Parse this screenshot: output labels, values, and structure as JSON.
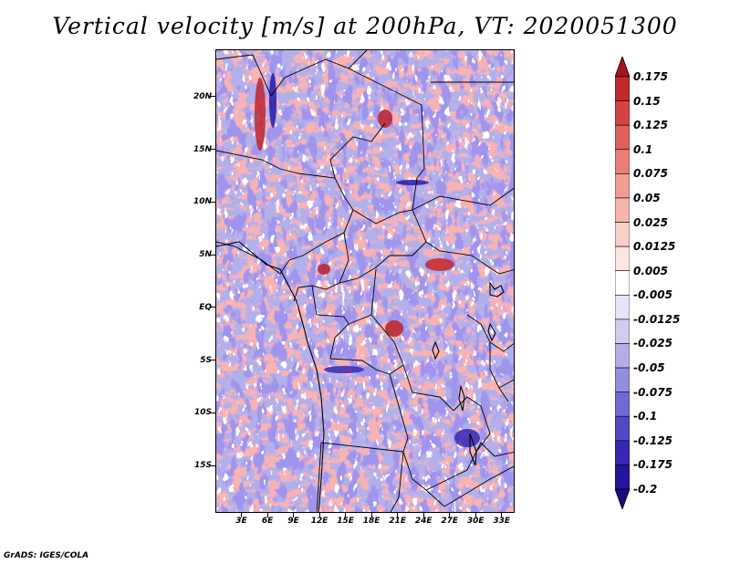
{
  "title": "Vertical velocity [m/s] at 200hPa, VT: 2020051300",
  "credit": "GrADS: IGES/COLA",
  "lat_labels": [
    "20N",
    "15N",
    "10N",
    "5N",
    "EQ",
    "5S",
    "10S",
    "15S"
  ],
  "lon_labels": [
    "3E",
    "6E",
    "9E",
    "12E",
    "15E",
    "18E",
    "21E",
    "24E",
    "27E",
    "30E",
    "33E"
  ],
  "colorbar": {
    "labels": [
      "0.175",
      "0.15",
      "0.125",
      "0.1",
      "0.075",
      "0.05",
      "0.025",
      "0.0125",
      "0.005",
      "-0.005",
      "-0.0125",
      "-0.025",
      "-0.05",
      "-0.075",
      "-0.1",
      "-0.125",
      "-0.175",
      "-0.2"
    ],
    "colors": [
      "#a8141c",
      "#c02a2e",
      "#d44440",
      "#e0605a",
      "#e87f77",
      "#f09c93",
      "#f5b6ae",
      "#f9cfca",
      "#fce6e3",
      "#ffffff",
      "#e6e4f7",
      "#cfccf0",
      "#b3aee8",
      "#948ddf",
      "#7469d3",
      "#5447c4",
      "#3826b2",
      "#25149c",
      "#1a0a80"
    ]
  },
  "map": {
    "lat_range": [
      -19.5,
      24.5
    ],
    "lon_range": [
      0,
      34.5
    ],
    "background": "#a9a8e8"
  }
}
